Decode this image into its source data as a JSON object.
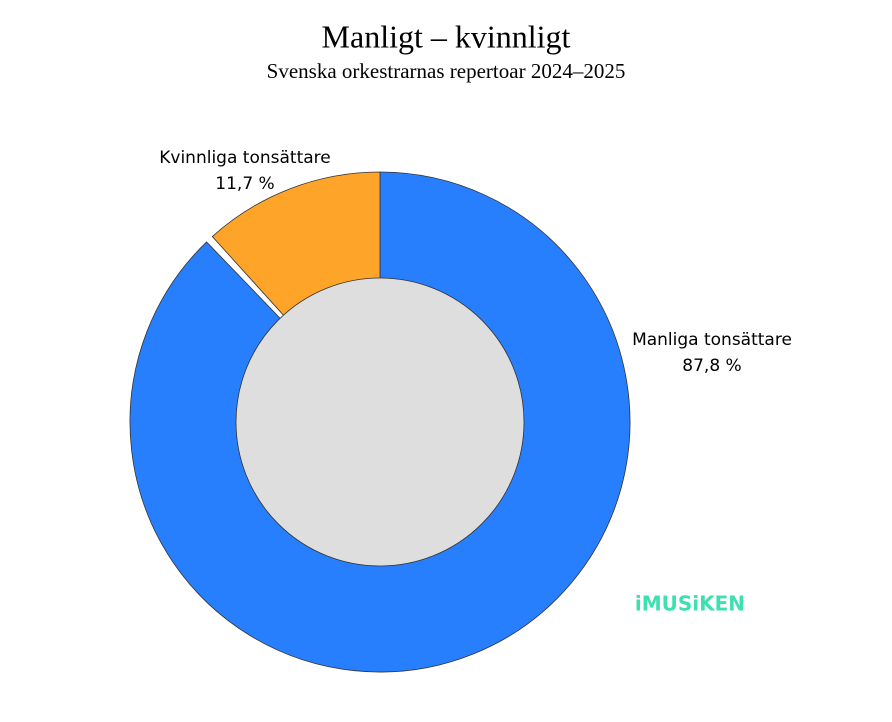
{
  "chart_data": {
    "type": "pie",
    "title": "Manligt – kvinnligt",
    "subtitle": "Svenska orkestrarnas repertoar 2024–2025",
    "categories": [
      "Manliga tonsättare",
      "Kvinnliga tonsättare"
    ],
    "values": [
      87.8,
      11.7
    ],
    "value_labels": [
      "87,8 %",
      "11,7 %"
    ],
    "colors": [
      "#277ffe",
      "#fea428"
    ]
  },
  "watermark": "iMUSiKEN"
}
